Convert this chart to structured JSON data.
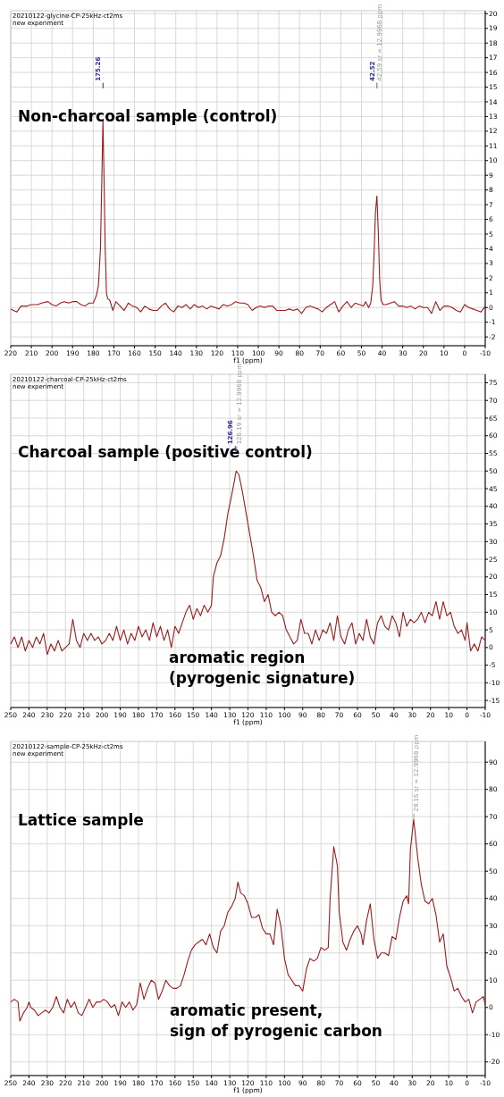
{
  "chart_data": [
    {
      "type": "line",
      "title": "Non-charcoal sample (control)",
      "xlabel": "f1 (ppm)",
      "annotations": [
        "20210122-glycine-CP-25kHz-ct2ms",
        "new experiment"
      ],
      "ref_lines": [
        {
          "axis": "x",
          "value": 175.26,
          "label": "175.26",
          "color": "#2b2b9a"
        },
        {
          "axis": "x",
          "value": 42.52,
          "label": "42.52",
          "color": "#2b2b9a"
        },
        {
          "axis": "x",
          "value": 42.59,
          "label": "42.59 sr = 12.9968 ppm",
          "color": "#9a9a9a"
        }
      ],
      "xlim": [
        220,
        -10
      ],
      "ylim": [
        -2.6,
        20.2
      ],
      "xticks": [
        220,
        210,
        200,
        190,
        180,
        170,
        160,
        150,
        140,
        130,
        120,
        110,
        100,
        90,
        80,
        70,
        60,
        50,
        40,
        30,
        20,
        10,
        0,
        -10
      ],
      "yticks": [
        -2,
        -1,
        0,
        1,
        2,
        3,
        4,
        5,
        6,
        7,
        8,
        9,
        10,
        11,
        12,
        13,
        14,
        15,
        16,
        17,
        18,
        19,
        20
      ],
      "grid": true,
      "x": [
        220,
        217,
        215,
        212,
        210,
        207,
        205,
        202,
        200,
        198,
        196,
        194,
        192,
        190,
        188,
        186,
        184,
        182,
        180,
        178.5,
        177.5,
        176.5,
        175.8,
        175.3,
        174.8,
        174.2,
        173.6,
        173,
        172,
        170.5,
        169,
        167,
        165,
        163,
        161,
        159,
        157,
        155,
        153,
        151,
        149,
        147,
        145,
        143,
        141,
        139,
        137,
        135,
        133,
        131,
        129,
        127,
        125,
        123,
        121,
        119,
        117,
        115,
        113,
        111,
        109,
        107,
        105,
        103,
        101,
        99,
        97,
        95,
        93,
        91,
        89,
        87,
        85,
        83,
        81,
        79,
        77,
        75,
        73,
        71,
        69,
        67,
        65,
        63,
        61,
        59,
        57,
        55,
        53,
        51,
        49,
        48,
        46.5,
        45.5,
        44.5,
        43.8,
        43.2,
        42.5,
        41.8,
        41.2,
        40.5,
        39.5,
        38,
        36,
        34,
        32,
        30,
        28,
        26,
        24,
        22,
        20,
        18,
        16,
        14,
        12,
        10,
        8,
        6,
        4,
        2,
        0,
        -2,
        -4,
        -6,
        -8,
        -10
      ],
      "series": [
        {
          "color": "#9b1c1c",
          "values": [
            -0.1,
            -0.3,
            0.1,
            0.1,
            0.2,
            0.2,
            0.3,
            0.4,
            0.2,
            0.1,
            0.3,
            0.4,
            0.3,
            0.4,
            0.4,
            0.2,
            0.1,
            0.3,
            0.3,
            0.8,
            1.5,
            4,
            9,
            12.8,
            9,
            4,
            1,
            0.6,
            0.5,
            -0.2,
            0.4,
            0.1,
            -0.2,
            0.3,
            0.1,
            0,
            -0.3,
            0.1,
            -0.1,
            -0.2,
            -0.2,
            0.1,
            0.3,
            -0.1,
            -0.3,
            0.1,
            0,
            0.2,
            -0.1,
            0.2,
            0,
            0.1,
            -0.1,
            0.1,
            0,
            -0.1,
            0.2,
            0.1,
            0.2,
            0.4,
            0.3,
            0.3,
            0.2,
            -0.2,
            0,
            0.1,
            0,
            0.1,
            0.1,
            -0.2,
            -0.2,
            -0.2,
            -0.1,
            -0.2,
            -0.1,
            -0.4,
            0,
            0.1,
            0,
            -0.1,
            -0.3,
            0,
            0.2,
            0.4,
            -0.3,
            0.1,
            0.4,
            0,
            0.3,
            0.2,
            0.1,
            0.4,
            0,
            0.3,
            1.5,
            4,
            6.5,
            7.6,
            5,
            2,
            0.5,
            0.2,
            0.2,
            0.3,
            0.4,
            0.1,
            0.1,
            0,
            0.1,
            -0.1,
            0.1,
            0,
            0,
            -0.4,
            0.4,
            -0.2,
            0.1,
            0.1,
            0,
            -0.2,
            -0.3,
            0.2,
            0,
            -0.1,
            -0.2,
            -0.3,
            0.1
          ]
        }
      ]
    },
    {
      "type": "line",
      "title": "Charcoal sample (positive control)",
      "xlabel": "f1 (ppm)",
      "annotations": [
        "20210122-charcoal-CP-25kHz-ct2ms",
        "new experiment",
        "aromatic region",
        "(pyrogenic signature)"
      ],
      "ref_lines": [
        {
          "axis": "x",
          "value": 126.96,
          "label": "126.96",
          "color": "#2b2b9a"
        },
        {
          "axis": "x",
          "value": 126.19,
          "label": "126.19 sr = 12.9968 ppm",
          "color": "#9a9a9a"
        }
      ],
      "xlim": [
        250,
        -10
      ],
      "ylim": [
        -17,
        77.4
      ],
      "xticks": [
        250,
        240,
        230,
        220,
        210,
        200,
        190,
        180,
        170,
        160,
        150,
        140,
        130,
        120,
        110,
        100,
        90,
        80,
        70,
        60,
        50,
        40,
        30,
        20,
        10,
        0,
        -10
      ],
      "yticks": [
        -15,
        -10,
        -5,
        0,
        5,
        10,
        15,
        20,
        25,
        30,
        35,
        40,
        45,
        50,
        55,
        60,
        65,
        70,
        75
      ],
      "grid": true,
      "x": [
        250,
        248,
        246,
        244,
        242,
        240,
        238,
        236,
        234,
        232,
        230,
        228,
        226,
        224,
        222,
        220,
        218,
        216,
        214,
        212,
        210,
        208,
        206,
        204,
        202,
        200,
        198,
        196,
        194,
        192,
        190,
        188,
        186,
        184,
        182,
        180,
        178,
        176,
        174,
        172,
        170,
        168,
        166,
        164,
        162,
        160,
        158,
        156,
        154,
        152,
        150,
        148,
        146,
        144,
        142,
        140,
        139,
        137,
        135,
        133,
        131,
        129,
        127.5,
        126.5,
        125,
        123,
        121,
        119,
        117,
        115,
        113,
        111,
        109,
        107,
        105,
        103,
        101,
        99,
        97,
        95,
        93,
        91,
        89,
        87,
        85,
        83,
        81,
        79,
        77,
        75,
        73,
        71,
        69,
        67,
        65,
        63,
        61,
        59,
        57,
        55,
        53,
        51,
        49,
        47,
        45,
        43,
        41,
        39,
        37,
        35,
        33,
        31,
        29,
        27,
        25,
        23,
        21,
        19,
        17,
        15,
        13,
        11,
        9,
        7,
        5,
        3,
        1,
        0,
        -2,
        -4,
        -6,
        -8,
        -10
      ],
      "series": [
        {
          "color": "#9b1c1c",
          "values": [
            1,
            3,
            0,
            3,
            -1,
            2,
            0,
            3,
            1,
            4,
            -2,
            1,
            -1,
            2,
            -1,
            0,
            1,
            8,
            2,
            0,
            4,
            2,
            4,
            2,
            3,
            1,
            2,
            4,
            2,
            6,
            2,
            5,
            1,
            4,
            2,
            6,
            3,
            5,
            2,
            7,
            3,
            6,
            2,
            5,
            0,
            6,
            4,
            7,
            10,
            12,
            8,
            11,
            9,
            12,
            10,
            12,
            20,
            24,
            26,
            31,
            38,
            43,
            47,
            50,
            49,
            44,
            38,
            32,
            26,
            19,
            17,
            13,
            15,
            10,
            9,
            10,
            9,
            5,
            3,
            1,
            2,
            8,
            4,
            4,
            1,
            5,
            2,
            5,
            4,
            7,
            2,
            9,
            3,
            1,
            5,
            7,
            1,
            4,
            2,
            8,
            3,
            1,
            7,
            9,
            6,
            5,
            9,
            7,
            3,
            10,
            6,
            8,
            7,
            8,
            10,
            7,
            10,
            9,
            13,
            8,
            13,
            9,
            10,
            6,
            4,
            5,
            2,
            7,
            -1,
            1,
            -1,
            3,
            2
          ]
        }
      ]
    },
    {
      "type": "line",
      "title": "Lattice sample",
      "xlabel": "f1 (ppm)",
      "annotations": [
        "20210122-sample-CP-25kHz-ct2ms",
        "new experiment",
        "aromatic present,",
        "sign of pyrogenic carbon"
      ],
      "ref_lines": [
        {
          "axis": "x",
          "value": 29.16,
          "label": "29.16 sr = 12.9968 ppm",
          "color": "#9a9a9a"
        }
      ],
      "xlim": [
        250,
        -10
      ],
      "ylim": [
        -25,
        97.6
      ],
      "xticks": [
        250,
        240,
        230,
        220,
        210,
        200,
        190,
        180,
        170,
        160,
        150,
        140,
        130,
        120,
        110,
        100,
        90,
        80,
        70,
        60,
        50,
        40,
        30,
        20,
        10,
        0,
        -10
      ],
      "yticks": [
        -20,
        -10,
        0,
        10,
        20,
        30,
        40,
        50,
        60,
        70,
        80,
        90
      ],
      "grid": true,
      "x": [
        250,
        248,
        246,
        245,
        243,
        241,
        240,
        239,
        237,
        235,
        233,
        231,
        229,
        227,
        225,
        223,
        221,
        219,
        217,
        215,
        213,
        211,
        209,
        207,
        205,
        203,
        201,
        199,
        197,
        195,
        193,
        191,
        189,
        187,
        185,
        183,
        181,
        179,
        177,
        175,
        173,
        171,
        169,
        167,
        165,
        163,
        161,
        159,
        157,
        155,
        153,
        151,
        149,
        147,
        145,
        143,
        141,
        139,
        137,
        135,
        133,
        131,
        129,
        127,
        125.5,
        124,
        122,
        120,
        118,
        116,
        114,
        112,
        110,
        108,
        106,
        104,
        102,
        100,
        98,
        96,
        94,
        92,
        90,
        88,
        86,
        84,
        82,
        80,
        78,
        76,
        75,
        73,
        71,
        70,
        68,
        66,
        64,
        62,
        60,
        58,
        57,
        55,
        53,
        51,
        49,
        47,
        45,
        43,
        41,
        39,
        37,
        35,
        33,
        32,
        31,
        29.2,
        27,
        25,
        23,
        21,
        19,
        17,
        15,
        13,
        11,
        9,
        7,
        5,
        3,
        1,
        -1,
        -3,
        -5,
        -7,
        -9,
        -10
      ],
      "series": [
        {
          "color": "#9b1c1c",
          "values": [
            2,
            3,
            2,
            -5,
            -2,
            0,
            2,
            0,
            -1,
            -3,
            -2,
            -1,
            -2,
            0,
            4,
            0,
            -2,
            3,
            0,
            2,
            -2,
            -3,
            0,
            3,
            0,
            2,
            2,
            3,
            2,
            0,
            1,
            -3,
            2,
            0,
            2,
            -1,
            1,
            9,
            3,
            7,
            10,
            9,
            3,
            6,
            10,
            8,
            7,
            7,
            8,
            12,
            17,
            21,
            23,
            24,
            25,
            23,
            27,
            22,
            20,
            28,
            30,
            35,
            37,
            40,
            46,
            42,
            41,
            38,
            33,
            33,
            34,
            29,
            27,
            27,
            23,
            36,
            30,
            18,
            12,
            10,
            8,
            8,
            6,
            14,
            18,
            17,
            18,
            22,
            21,
            22,
            40,
            59,
            52,
            35,
            24,
            21,
            25,
            28,
            30,
            27,
            23,
            32,
            38,
            25,
            18,
            20,
            20,
            19,
            26,
            25,
            33,
            39,
            41,
            38,
            58,
            69,
            55,
            45,
            39,
            38,
            40,
            34,
            24,
            27,
            15,
            11,
            6,
            7,
            4,
            2,
            3,
            -2,
            2,
            3,
            4,
            1
          ]
        }
      ]
    }
  ]
}
